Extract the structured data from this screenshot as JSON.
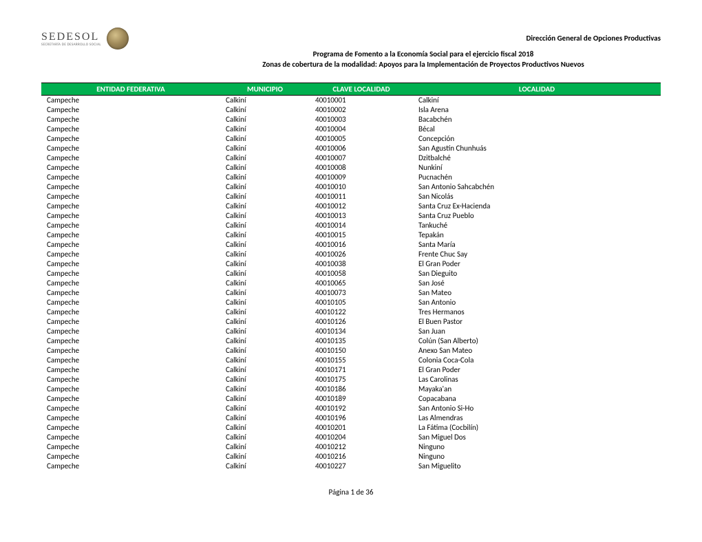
{
  "header": {
    "org_name": "SEDESOL",
    "org_sub": "SECRETARÍA DE DESARROLLO SOCIAL",
    "title1": "Dirección General de Opciones Productivas",
    "title2": "Programa de Fomento a la Economía Social para el ejercicio fiscal 2018",
    "title3": "Zonas de cobertura de la modalidad: Apoyos para la Implementación de Proyectos Productivos Nuevos"
  },
  "table": {
    "columns": [
      "ENTIDAD FEDERATIVA",
      "MUNICIPIO",
      "CLAVE  LOCALIDAD",
      "LOCALIDAD"
    ],
    "header_bg": "#00b050",
    "header_fg": "#ffffff",
    "rows": [
      [
        "Campeche",
        "Calkiní",
        "40010001",
        "Calkiní"
      ],
      [
        "Campeche",
        "Calkiní",
        "40010002",
        "Isla Arena"
      ],
      [
        "Campeche",
        "Calkiní",
        "40010003",
        "Bacabchén"
      ],
      [
        "Campeche",
        "Calkiní",
        "40010004",
        "Bécal"
      ],
      [
        "Campeche",
        "Calkiní",
        "40010005",
        "Concepción"
      ],
      [
        "Campeche",
        "Calkiní",
        "40010006",
        "San Agustín Chunhuás"
      ],
      [
        "Campeche",
        "Calkiní",
        "40010007",
        "Dzitbalché"
      ],
      [
        "Campeche",
        "Calkiní",
        "40010008",
        "Nunkiní"
      ],
      [
        "Campeche",
        "Calkiní",
        "40010009",
        "Pucnachén"
      ],
      [
        "Campeche",
        "Calkiní",
        "40010010",
        "San Antonio Sahcabchén"
      ],
      [
        "Campeche",
        "Calkiní",
        "40010011",
        "San Nicolás"
      ],
      [
        "Campeche",
        "Calkiní",
        "40010012",
        "Santa Cruz Ex-Hacienda"
      ],
      [
        "Campeche",
        "Calkiní",
        "40010013",
        "Santa Cruz Pueblo"
      ],
      [
        "Campeche",
        "Calkiní",
        "40010014",
        "Tankuché"
      ],
      [
        "Campeche",
        "Calkiní",
        "40010015",
        "Tepakán"
      ],
      [
        "Campeche",
        "Calkiní",
        "40010016",
        "Santa María"
      ],
      [
        "Campeche",
        "Calkiní",
        "40010026",
        "Frente Chuc Say"
      ],
      [
        "Campeche",
        "Calkiní",
        "40010038",
        "El Gran Poder"
      ],
      [
        "Campeche",
        "Calkiní",
        "40010058",
        "San Dieguito"
      ],
      [
        "Campeche",
        "Calkiní",
        "40010065",
        "San José"
      ],
      [
        "Campeche",
        "Calkiní",
        "40010073",
        "San Mateo"
      ],
      [
        "Campeche",
        "Calkiní",
        "40010105",
        "San Antonio"
      ],
      [
        "Campeche",
        "Calkiní",
        "40010122",
        "Tres Hermanos"
      ],
      [
        "Campeche",
        "Calkiní",
        "40010126",
        "El Buen Pastor"
      ],
      [
        "Campeche",
        "Calkiní",
        "40010134",
        "San Juan"
      ],
      [
        "Campeche",
        "Calkiní",
        "40010135",
        "Colún (San Alberto)"
      ],
      [
        "Campeche",
        "Calkiní",
        "40010150",
        "Anexo San Mateo"
      ],
      [
        "Campeche",
        "Calkiní",
        "40010155",
        "Colonia Coca-Cola"
      ],
      [
        "Campeche",
        "Calkiní",
        "40010171",
        "El Gran Poder"
      ],
      [
        "Campeche",
        "Calkiní",
        "40010175",
        "Las Carolinas"
      ],
      [
        "Campeche",
        "Calkiní",
        "40010186",
        "Mayaka'an"
      ],
      [
        "Campeche",
        "Calkiní",
        "40010189",
        "Copacabana"
      ],
      [
        "Campeche",
        "Calkiní",
        "40010192",
        "San Antonio Si-Ho"
      ],
      [
        "Campeche",
        "Calkiní",
        "40010196",
        "Las Almendras"
      ],
      [
        "Campeche",
        "Calkiní",
        "40010201",
        "La Fátima (Cocbilín)"
      ],
      [
        "Campeche",
        "Calkiní",
        "40010204",
        "San Miguel Dos"
      ],
      [
        "Campeche",
        "Calkiní",
        "40010212",
        "Ninguno"
      ],
      [
        "Campeche",
        "Calkiní",
        "40010216",
        "Ninguno"
      ],
      [
        "Campeche",
        "Calkiní",
        "40010227",
        "San Miguelito"
      ]
    ]
  },
  "footer": {
    "page_label": "Página 1 de  36"
  }
}
